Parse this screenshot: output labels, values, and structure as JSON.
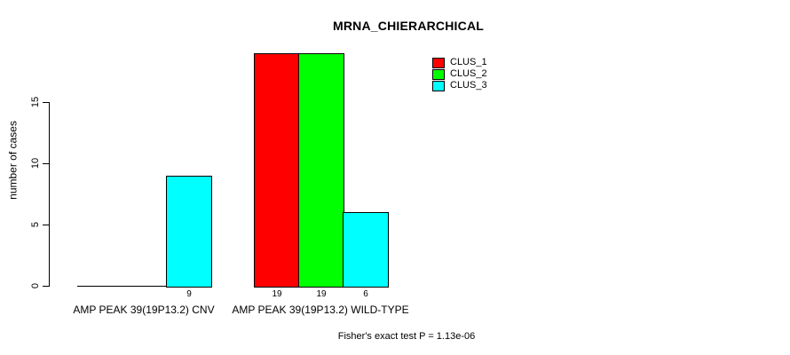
{
  "chart_data": {
    "type": "bar",
    "title": "MRNA_CHIERARCHICAL",
    "ylabel": "number of cases",
    "xlabel": "",
    "categories": [
      "AMP PEAK 39(19P13.2) CNV",
      "AMP PEAK 39(19P13.2) WILD-TYPE"
    ],
    "series": [
      {
        "name": "CLUS_1",
        "color": "#ff0000",
        "values": [
          0,
          19
        ]
      },
      {
        "name": "CLUS_2",
        "color": "#00ff00",
        "values": [
          0,
          19
        ]
      },
      {
        "name": "CLUS_3",
        "color": "#00ffff",
        "values": [
          9,
          6
        ]
      }
    ],
    "bar_value_labels": [
      [
        "",
        "",
        "9"
      ],
      [
        "19",
        "19",
        "6"
      ]
    ],
    "yticks": [
      0,
      5,
      10,
      15
    ],
    "ylim": [
      0,
      19
    ],
    "grid": false,
    "legend_position": "top-right",
    "annotation": "Fisher's exact test P = 1.13e-06"
  }
}
